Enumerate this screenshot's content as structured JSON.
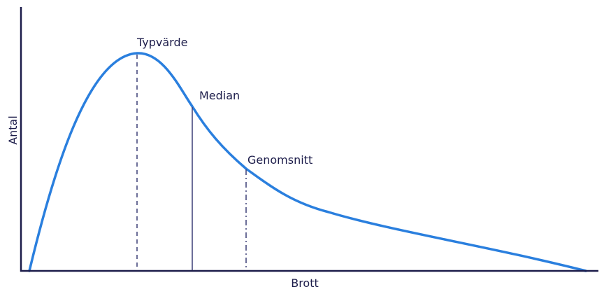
{
  "diagram": {
    "x_axis_label": "Brott",
    "y_axis_label": "Antal",
    "annotations": {
      "mode": "Typvärde",
      "median": "Median",
      "mean": "Genomsnitt"
    },
    "colors": {
      "curve": "#2a7fde",
      "axes": "#1c1c4a",
      "markers": "#3b3f77",
      "text": "#1c1c4a"
    },
    "marker_styles": {
      "mode": "dashed",
      "median": "solid",
      "mean": "dash-dot"
    }
  }
}
